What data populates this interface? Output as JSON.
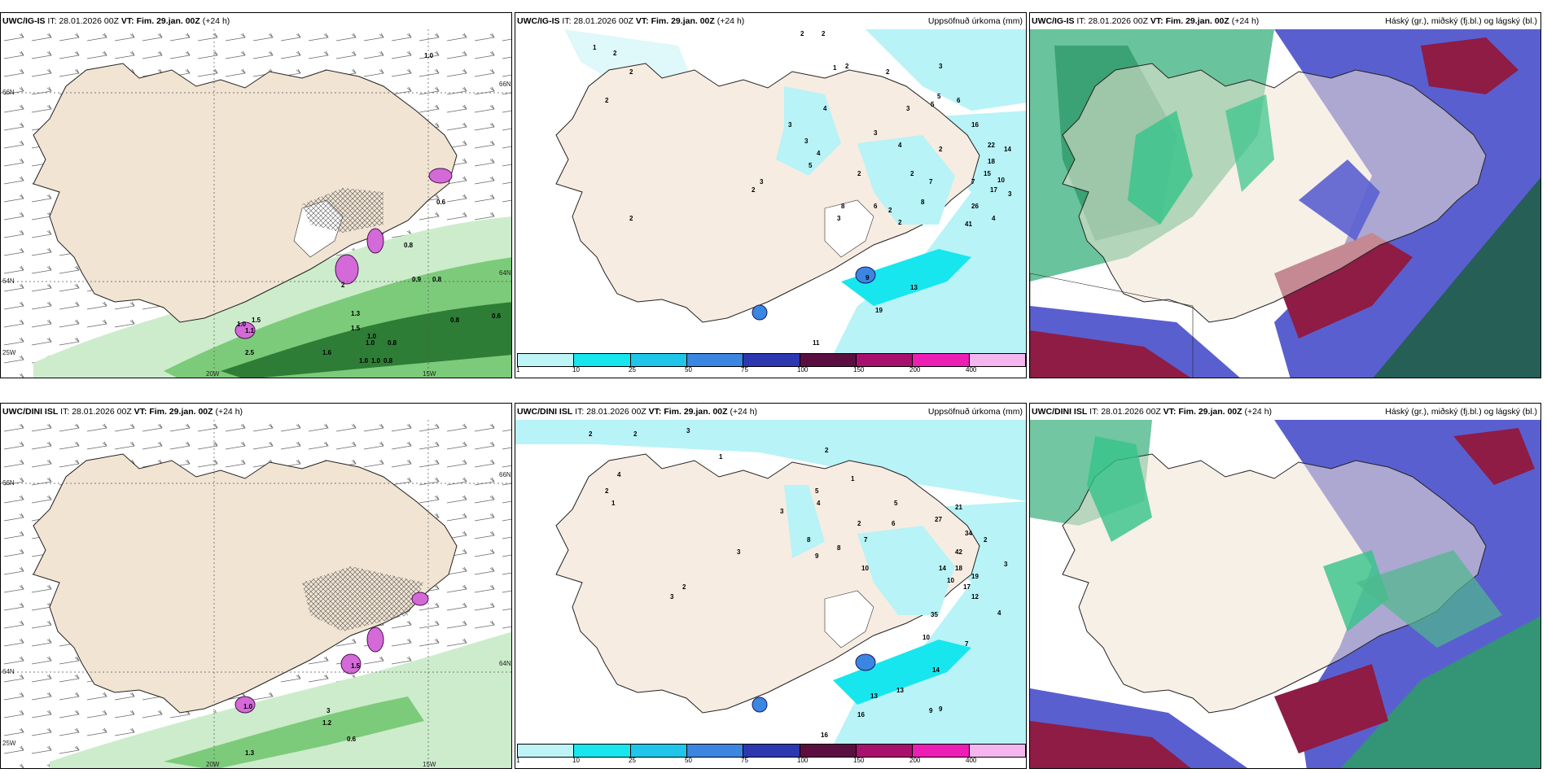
{
  "rows": [
    {
      "model": "UWC/IG-IS",
      "it_label": "IT:",
      "it_value": "28.01.2026 00Z",
      "vt_label": "VT:",
      "vt_value": "Fim. 29.jan. 00Z",
      "lead": "(+24 h)",
      "wind_lat_labels": [
        "66N",
        "64N",
        "25W"
      ],
      "wind_lon_labels": [
        "20W",
        "15W"
      ],
      "wind_right_labels": [
        "66N",
        "64N"
      ],
      "wind_values": [
        "1.0",
        "0.8",
        "1.5",
        "1.3",
        "2.5",
        "1.0",
        "0.8",
        "0.6",
        "0.8",
        "0.9",
        "0.6",
        "0.8",
        "1.0",
        "2",
        "1.1",
        "1.0",
        "1.5",
        "1.0",
        "0.8",
        "1.0",
        "1.6"
      ],
      "precip_title": "Uppsöfnuð úrkoma (mm)",
      "precip_values": [
        "1",
        "2",
        "2",
        "2",
        "2",
        "2",
        "3",
        "3",
        "4",
        "4",
        "5",
        "2",
        "3",
        "2",
        "8",
        "2",
        "2",
        "3",
        "4",
        "2",
        "7",
        "8",
        "2",
        "5",
        "16",
        "22",
        "14",
        "18",
        "15",
        "10",
        "17",
        "26",
        "41",
        "4",
        "3",
        "13",
        "19",
        "11",
        "9",
        "2",
        "3",
        "3",
        "6",
        "2",
        "1",
        "2",
        "3",
        "5",
        "6",
        "7"
      ],
      "cloud_title": "Háský (gr.), miðský (fj.bl.) og lágský (bl.)"
    },
    {
      "model": "UWC/DINI ISL",
      "it_label": "IT:",
      "it_value": "28.01.2026 00Z",
      "vt_label": "VT:",
      "vt_value": "Fim. 29.jan. 00Z",
      "lead": "(+24 h)",
      "wind_lat_labels": [
        "66N",
        "64N",
        "25W"
      ],
      "wind_lon_labels": [
        "20W",
        "15W"
      ],
      "wind_right_labels": [
        "66N",
        "64N"
      ],
      "wind_values": [
        "0.6",
        "1.2",
        "1.5",
        "3",
        "1.0",
        "1.3"
      ],
      "precip_title": "Uppsöfnuð úrkoma (mm)",
      "precip_values": [
        "2",
        "2",
        "3",
        "1",
        "2",
        "1",
        "4",
        "8",
        "5",
        "4",
        "2",
        "3",
        "9",
        "8",
        "1",
        "3",
        "2",
        "10",
        "7",
        "6",
        "5",
        "27",
        "21",
        "34",
        "42",
        "14",
        "18",
        "10",
        "19",
        "17",
        "12",
        "35",
        "10",
        "7",
        "14",
        "13",
        "16",
        "9",
        "9",
        "16",
        "13",
        "2",
        "4",
        "3",
        "3",
        "2"
      ],
      "cloud_title": "Háský (gr.), miðský (fj.bl.) og lágský (bl.)"
    }
  ],
  "colorbar": {
    "ticks": [
      "1",
      "10",
      "25",
      "50",
      "75",
      "100",
      "150",
      "200",
      "400"
    ],
    "colors": [
      "#bff4f7",
      "#17e6ef",
      "#1fc6ea",
      "#3a86e0",
      "#2d38b0",
      "#5a0f40",
      "#a8106e",
      "#ec1eb3",
      "#f4b6ee"
    ]
  },
  "palette": {
    "land": "#f1e4d3",
    "sea": "#ffffff",
    "precip_light": "#b7f3f7",
    "wind_green": "#2f8f3a",
    "snow_magenta": "#c85ad0",
    "high_cloud": "#2a7f5d",
    "mid_cloud": "#5253c8",
    "low_cloud": "#8a1840"
  }
}
